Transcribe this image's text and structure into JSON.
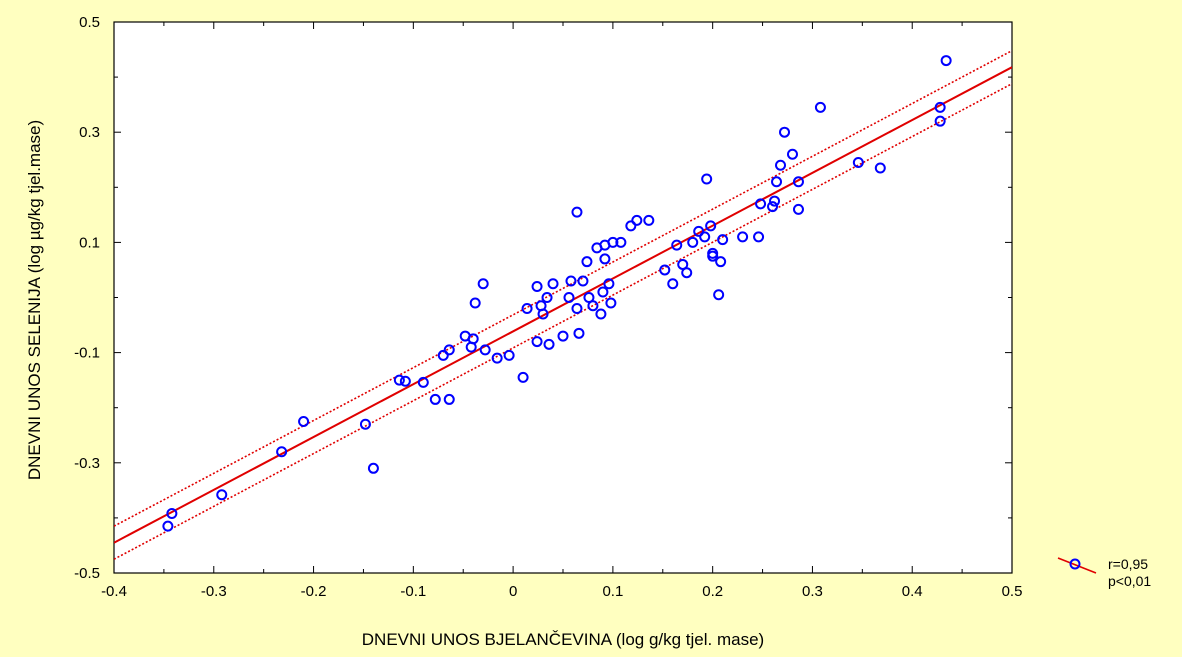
{
  "chart_data": {
    "type": "scatter",
    "title": "",
    "xlabel": "DNEVNI UNOS BJELANČEVINA (log g/kg tjel. mase)",
    "ylabel": "DNEVNI UNOS SELENIJA  (log µg/kg tjel.mase)",
    "xlim": [
      -0.4,
      0.5
    ],
    "ylim": [
      -0.5,
      0.5
    ],
    "xticks": [
      "-0.4",
      "-0.3",
      "-0.2",
      "-0.1",
      "0",
      "0.1",
      "0.2",
      "0.3",
      "0.4",
      "0.5"
    ],
    "yticks": [
      "-0.5",
      "-0.3",
      "-0.1",
      "0.1",
      "0.3",
      "0.5"
    ],
    "grid": false,
    "legend_position": "bottom-right",
    "legend": [
      "r=0,95",
      "p<0,01"
    ],
    "colors": {
      "points": "#0000FF",
      "fit_line": "#E00000",
      "confidence_band": "#E00000",
      "background": "#FFFFC0",
      "plot_area": "#FFFFFF"
    },
    "fit_line": {
      "x": [
        -0.4,
        0.5
      ],
      "y": [
        -0.445,
        0.418
      ]
    },
    "confidence_upper": {
      "x": [
        -0.4,
        0.5
      ],
      "y": [
        -0.415,
        0.448
      ]
    },
    "confidence_lower": {
      "x": [
        -0.4,
        0.5
      ],
      "y": [
        -0.475,
        0.388
      ]
    },
    "series": [
      {
        "points": [
          [
            -0.346,
            -0.415
          ],
          [
            -0.342,
            -0.392
          ],
          [
            -0.292,
            -0.358
          ],
          [
            -0.232,
            -0.28
          ],
          [
            -0.21,
            -0.225
          ],
          [
            -0.148,
            -0.23
          ],
          [
            -0.14,
            -0.31
          ],
          [
            -0.114,
            -0.15
          ],
          [
            -0.108,
            -0.152
          ],
          [
            -0.09,
            -0.154
          ],
          [
            -0.078,
            -0.185
          ],
          [
            -0.07,
            -0.105
          ],
          [
            -0.064,
            -0.185
          ],
          [
            -0.064,
            -0.095
          ],
          [
            -0.048,
            -0.07
          ],
          [
            -0.042,
            -0.09
          ],
          [
            -0.04,
            -0.075
          ],
          [
            -0.038,
            -0.01
          ],
          [
            -0.03,
            0.025
          ],
          [
            -0.028,
            -0.095
          ],
          [
            -0.016,
            -0.11
          ],
          [
            -0.004,
            -0.105
          ],
          [
            0.01,
            -0.145
          ],
          [
            0.014,
            -0.02
          ],
          [
            0.024,
            -0.08
          ],
          [
            0.024,
            0.02
          ],
          [
            0.028,
            -0.015
          ],
          [
            0.03,
            -0.03
          ],
          [
            0.034,
            0.0
          ],
          [
            0.036,
            -0.085
          ],
          [
            0.04,
            0.025
          ],
          [
            0.05,
            -0.07
          ],
          [
            0.056,
            0.0
          ],
          [
            0.058,
            0.03
          ],
          [
            0.064,
            0.155
          ],
          [
            0.064,
            -0.02
          ],
          [
            0.066,
            -0.065
          ],
          [
            0.07,
            0.03
          ],
          [
            0.074,
            0.065
          ],
          [
            0.076,
            0.0
          ],
          [
            0.08,
            -0.015
          ],
          [
            0.084,
            0.09
          ],
          [
            0.088,
            -0.03
          ],
          [
            0.09,
            0.01
          ],
          [
            0.092,
            0.07
          ],
          [
            0.092,
            0.095
          ],
          [
            0.096,
            0.025
          ],
          [
            0.098,
            -0.01
          ],
          [
            0.1,
            0.1
          ],
          [
            0.108,
            0.1
          ],
          [
            0.118,
            0.13
          ],
          [
            0.124,
            0.14
          ],
          [
            0.136,
            0.14
          ],
          [
            0.152,
            0.05
          ],
          [
            0.16,
            0.025
          ],
          [
            0.164,
            0.095
          ],
          [
            0.17,
            0.06
          ],
          [
            0.174,
            0.045
          ],
          [
            0.18,
            0.1
          ],
          [
            0.186,
            0.12
          ],
          [
            0.192,
            0.11
          ],
          [
            0.194,
            0.215
          ],
          [
            0.198,
            0.13
          ],
          [
            0.2,
            0.075
          ],
          [
            0.2,
            0.08
          ],
          [
            0.206,
            0.005
          ],
          [
            0.208,
            0.065
          ],
          [
            0.21,
            0.105
          ],
          [
            0.23,
            0.11
          ],
          [
            0.246,
            0.11
          ],
          [
            0.248,
            0.17
          ],
          [
            0.26,
            0.165
          ],
          [
            0.262,
            0.175
          ],
          [
            0.264,
            0.21
          ],
          [
            0.268,
            0.24
          ],
          [
            0.272,
            0.3
          ],
          [
            0.28,
            0.26
          ],
          [
            0.286,
            0.21
          ],
          [
            0.286,
            0.16
          ],
          [
            0.308,
            0.345
          ],
          [
            0.346,
            0.245
          ],
          [
            0.368,
            0.235
          ],
          [
            0.428,
            0.345
          ],
          [
            0.428,
            0.32
          ],
          [
            0.434,
            0.43
          ]
        ]
      }
    ]
  }
}
